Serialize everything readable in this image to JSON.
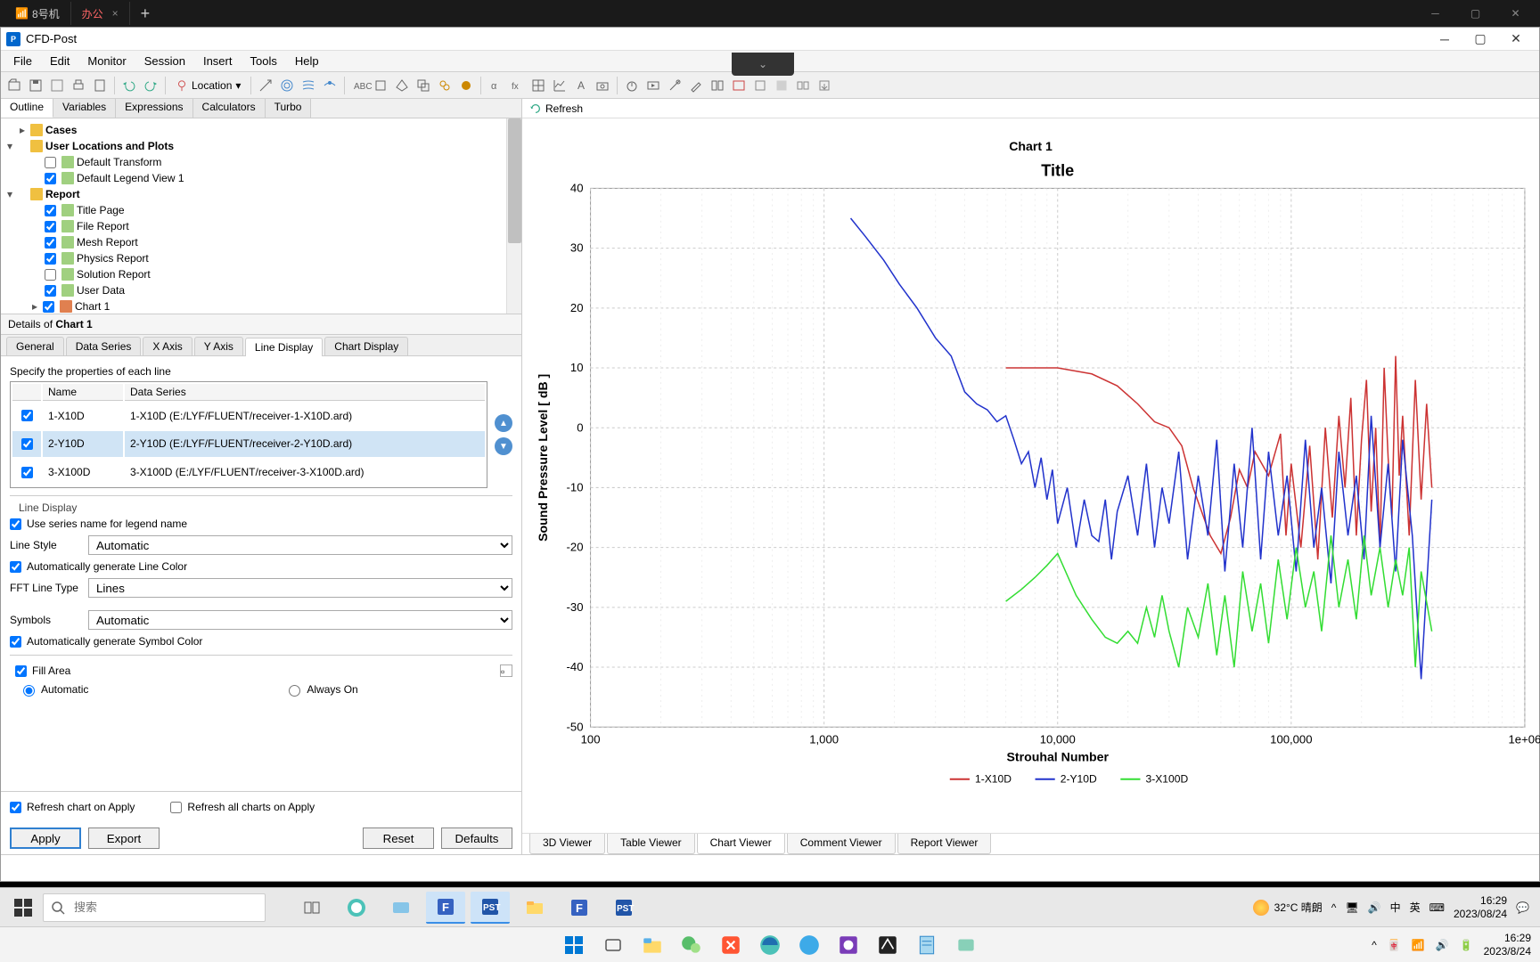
{
  "outer_tabs": {
    "tab1_icon_text": "📶",
    "tab1": "8号机",
    "tab2": "办公",
    "active_index": 1
  },
  "app": {
    "title": "CFD-Post",
    "menu": [
      "File",
      "Edit",
      "Monitor",
      "Session",
      "Insert",
      "Tools",
      "Help"
    ],
    "location_label": "Location"
  },
  "left_tabs": [
    "Outline",
    "Variables",
    "Expressions",
    "Calculators",
    "Turbo"
  ],
  "left_tabs_active": 0,
  "tree": {
    "cases": "Cases",
    "user_loc": "User Locations and Plots",
    "default_transform": "Default Transform",
    "default_legend": "Default Legend View 1",
    "report": "Report",
    "title_page": "Title Page",
    "file_report": "File Report",
    "mesh_report": "Mesh Report",
    "physics_report": "Physics Report",
    "solution_report": "Solution Report",
    "user_data": "User Data",
    "chart1": "Chart 1"
  },
  "details": {
    "header_prefix": "Details of ",
    "header_item": "Chart 1",
    "tabs": [
      "General",
      "Data Series",
      "X Axis",
      "Y Axis",
      "Line Display",
      "Chart Display"
    ],
    "tabs_active": 4,
    "spec_label": "Specify the properties of each line",
    "col_name": "Name",
    "col_series": "Data Series",
    "rows": [
      {
        "name": "1-X10D",
        "series": "1-X10D (E:/LYF/FLUENT/receiver-1-X10D.ard)",
        "selected": false
      },
      {
        "name": "2-Y10D",
        "series": "2-Y10D (E:/LYF/FLUENT/receiver-2-Y10D.ard)",
        "selected": true
      },
      {
        "name": "3-X100D",
        "series": "3-X100D (E:/LYF/FLUENT/receiver-3-X100D.ard)",
        "selected": false
      }
    ],
    "line_display_title": "Line Display",
    "use_series_name": "Use series name for legend name",
    "line_style_label": "Line Style",
    "line_style_value": "Automatic",
    "auto_line_color": "Automatically generate Line Color",
    "fft_label": "FFT Line Type",
    "fft_value": "Lines",
    "symbols_label": "Symbols",
    "symbols_value": "Automatic",
    "auto_symbol_color": "Automatically generate Symbol Color",
    "fill_area": "Fill Area",
    "radio_automatic": "Automatic",
    "radio_always": "Always On",
    "refresh_chart": "Refresh chart on Apply",
    "refresh_all": "Refresh all charts on Apply",
    "btn_apply": "Apply",
    "btn_export": "Export",
    "btn_reset": "Reset",
    "btn_defaults": "Defaults"
  },
  "right": {
    "refresh": "Refresh",
    "viewer_tabs": [
      "3D Viewer",
      "Table Viewer",
      "Chart Viewer",
      "Comment Viewer",
      "Report Viewer"
    ],
    "viewer_active": 2
  },
  "chart": {
    "panel_title": "Chart 1",
    "plot_title": "Title",
    "xlabel": "Strouhal Number",
    "ylabel": "Sound Pressure Level [ dB ]",
    "y_ticks": [
      -50,
      -40,
      -30,
      -20,
      -10,
      0,
      10,
      20,
      30,
      40
    ],
    "x_ticks": [
      {
        "v": 100,
        "l": "100"
      },
      {
        "v": 1000,
        "l": "1,000"
      },
      {
        "v": 10000,
        "l": "10,000"
      },
      {
        "v": 100000,
        "l": "100,000"
      },
      {
        "v": 1000000,
        "l": "1e+06"
      }
    ],
    "series": [
      {
        "name": "1-X10D",
        "color": "#cc3333",
        "data": [
          [
            6000,
            10
          ],
          [
            7000,
            10
          ],
          [
            8000,
            10
          ],
          [
            10000,
            10
          ],
          [
            14000,
            9
          ],
          [
            18000,
            7
          ],
          [
            22000,
            4
          ],
          [
            26000,
            1
          ],
          [
            30000,
            0
          ],
          [
            34000,
            -3
          ],
          [
            38000,
            -10
          ],
          [
            45000,
            -18
          ],
          [
            50000,
            -21
          ],
          [
            55000,
            -15
          ],
          [
            60000,
            -7
          ],
          [
            65000,
            -10
          ],
          [
            70000,
            -4
          ],
          [
            80000,
            -8
          ],
          [
            90000,
            -1
          ],
          [
            95000,
            -18
          ],
          [
            100000,
            -6
          ],
          [
            110000,
            -20
          ],
          [
            120000,
            -3
          ],
          [
            130000,
            -22
          ],
          [
            140000,
            0
          ],
          [
            150000,
            -15
          ],
          [
            160000,
            2
          ],
          [
            170000,
            -10
          ],
          [
            180000,
            5
          ],
          [
            190000,
            -18
          ],
          [
            200000,
            -2
          ],
          [
            210000,
            8
          ],
          [
            220000,
            -14
          ],
          [
            230000,
            0
          ],
          [
            240000,
            -20
          ],
          [
            250000,
            10
          ],
          [
            260000,
            -5
          ],
          [
            270000,
            -15
          ],
          [
            280000,
            12
          ],
          [
            290000,
            -8
          ],
          [
            300000,
            2
          ],
          [
            320000,
            -18
          ],
          [
            340000,
            8
          ],
          [
            360000,
            -12
          ],
          [
            380000,
            4
          ],
          [
            400000,
            -10
          ]
        ]
      },
      {
        "name": "2-Y10D",
        "color": "#2233cc",
        "data": [
          [
            1300,
            35
          ],
          [
            1500,
            32
          ],
          [
            1800,
            28
          ],
          [
            2100,
            24
          ],
          [
            2500,
            20
          ],
          [
            3000,
            15
          ],
          [
            3500,
            12
          ],
          [
            4000,
            6
          ],
          [
            4500,
            4
          ],
          [
            5000,
            3
          ],
          [
            5500,
            1
          ],
          [
            6000,
            2
          ],
          [
            6500,
            -2
          ],
          [
            7000,
            -6
          ],
          [
            7500,
            -4
          ],
          [
            8000,
            -10
          ],
          [
            8500,
            -5
          ],
          [
            9000,
            -12
          ],
          [
            9500,
            -7
          ],
          [
            10000,
            -16
          ],
          [
            11000,
            -10
          ],
          [
            12000,
            -20
          ],
          [
            13000,
            -12
          ],
          [
            14000,
            -18
          ],
          [
            15000,
            -19
          ],
          [
            16000,
            -12
          ],
          [
            17000,
            -22
          ],
          [
            18000,
            -14
          ],
          [
            20000,
            -8
          ],
          [
            22000,
            -18
          ],
          [
            24000,
            -6
          ],
          [
            26000,
            -20
          ],
          [
            28000,
            -10
          ],
          [
            30000,
            -16
          ],
          [
            33000,
            -4
          ],
          [
            36000,
            -22
          ],
          [
            40000,
            -8
          ],
          [
            44000,
            -18
          ],
          [
            48000,
            -2
          ],
          [
            52000,
            -24
          ],
          [
            57000,
            -6
          ],
          [
            62000,
            -20
          ],
          [
            68000,
            0
          ],
          [
            74000,
            -22
          ],
          [
            80000,
            -4
          ],
          [
            88000,
            -18
          ],
          [
            96000,
            -8
          ],
          [
            105000,
            -24
          ],
          [
            115000,
            -2
          ],
          [
            125000,
            -20
          ],
          [
            135000,
            -10
          ],
          [
            148000,
            -26
          ],
          [
            160000,
            -4
          ],
          [
            175000,
            -18
          ],
          [
            190000,
            -8
          ],
          [
            205000,
            -22
          ],
          [
            220000,
            2
          ],
          [
            240000,
            -20
          ],
          [
            260000,
            -6
          ],
          [
            280000,
            -24
          ],
          [
            300000,
            -2
          ],
          [
            330000,
            -18
          ],
          [
            360000,
            -42
          ],
          [
            400000,
            -12
          ]
        ]
      },
      {
        "name": "3-X100D",
        "color": "#33dd33",
        "data": [
          [
            6000,
            -29
          ],
          [
            7000,
            -27
          ],
          [
            8000,
            -25
          ],
          [
            9000,
            -23
          ],
          [
            10000,
            -21
          ],
          [
            12000,
            -28
          ],
          [
            14000,
            -32
          ],
          [
            16000,
            -35
          ],
          [
            18000,
            -36
          ],
          [
            20000,
            -34
          ],
          [
            22000,
            -36
          ],
          [
            24000,
            -30
          ],
          [
            26000,
            -35
          ],
          [
            28000,
            -28
          ],
          [
            30000,
            -34
          ],
          [
            33000,
            -40
          ],
          [
            36000,
            -30
          ],
          [
            40000,
            -35
          ],
          [
            44000,
            -26
          ],
          [
            48000,
            -38
          ],
          [
            52000,
            -28
          ],
          [
            57000,
            -40
          ],
          [
            62000,
            -24
          ],
          [
            68000,
            -34
          ],
          [
            74000,
            -26
          ],
          [
            80000,
            -36
          ],
          [
            88000,
            -22
          ],
          [
            96000,
            -32
          ],
          [
            105000,
            -20
          ],
          [
            115000,
            -30
          ],
          [
            125000,
            -24
          ],
          [
            135000,
            -34
          ],
          [
            148000,
            -18
          ],
          [
            160000,
            -30
          ],
          [
            175000,
            -22
          ],
          [
            190000,
            -32
          ],
          [
            205000,
            -18
          ],
          [
            220000,
            -28
          ],
          [
            240000,
            -20
          ],
          [
            260000,
            -30
          ],
          [
            280000,
            -22
          ],
          [
            300000,
            -28
          ],
          [
            320000,
            -20
          ],
          [
            340000,
            -40
          ],
          [
            360000,
            -24
          ],
          [
            400000,
            -34
          ]
        ]
      }
    ],
    "legend": [
      "1-X10D",
      "2-Y10D",
      "3-X100D"
    ]
  },
  "inner_taskbar": {
    "search_placeholder": "搜索",
    "weather": "32°C 晴朗",
    "ime": "中",
    "kbd": "英",
    "time": "16:29",
    "date": "2023/08/24"
  },
  "outer_taskbar": {
    "time": "16:29",
    "date": "2023/8/24"
  }
}
